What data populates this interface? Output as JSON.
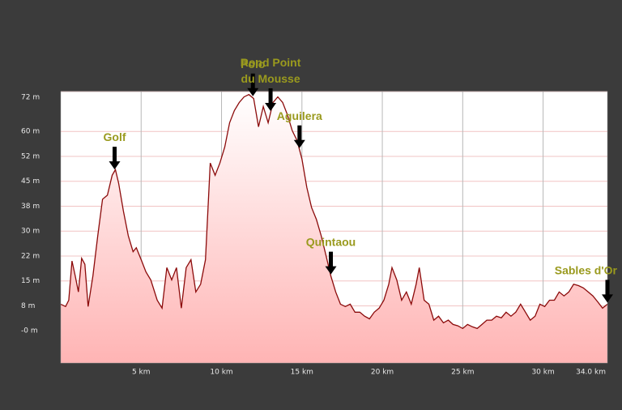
{
  "chart_data": {
    "type": "area",
    "x": [
      0,
      0.3,
      0.5,
      0.7,
      0.9,
      1.1,
      1.3,
      1.5,
      1.7,
      2.0,
      2.3,
      2.6,
      2.9,
      3.2,
      3.4,
      3.6,
      3.9,
      4.2,
      4.5,
      4.7,
      5.0,
      5.3,
      5.6,
      6.0,
      6.3,
      6.6,
      6.9,
      7.2,
      7.5,
      7.8,
      8.1,
      8.4,
      8.7,
      9.0,
      9.3,
      9.6,
      9.9,
      10.2,
      10.5,
      10.8,
      11.1,
      11.4,
      11.7,
      12.0,
      12.3,
      12.6,
      12.9,
      13.2,
      13.5,
      13.8,
      14.1,
      14.4,
      14.7,
      15.0,
      15.3,
      15.6,
      15.9,
      16.2,
      16.5,
      16.8,
      17.1,
      17.4,
      17.7,
      18.0,
      18.3,
      18.6,
      18.9,
      19.2,
      19.5,
      19.8,
      20.1,
      20.4,
      20.6,
      20.9,
      21.2,
      21.5,
      21.8,
      22.1,
      22.3,
      22.6,
      22.9,
      23.2,
      23.5,
      23.8,
      24.1,
      24.4,
      24.7,
      25.0,
      25.3,
      25.6,
      25.9,
      26.2,
      26.5,
      26.8,
      27.1,
      27.4,
      27.7,
      28.0,
      28.3,
      28.6,
      28.9,
      29.2,
      29.5,
      29.8,
      30.1,
      30.4,
      30.7,
      31.0,
      31.3,
      31.6,
      31.9,
      32.2,
      32.5,
      32.8,
      33.1,
      33.4,
      33.7,
      34.0
    ],
    "values": [
      8,
      7.3,
      9.2,
      21,
      16.5,
      11.7,
      21.8,
      20,
      7.3,
      16.5,
      28.6,
      39.6,
      40.8,
      46.8,
      48.5,
      44.4,
      36,
      28.6,
      23.8,
      25,
      21.4,
      17.7,
      15.3,
      9.2,
      6.8,
      19,
      15.3,
      19,
      6.8,
      19,
      21.4,
      11.7,
      14,
      21.4,
      50.5,
      46.8,
      50.5,
      55.3,
      62.6,
      66.3,
      68.7,
      70.4,
      71.1,
      69.9,
      61.4,
      67.5,
      62.6,
      68.7,
      70.4,
      68.7,
      65,
      60.2,
      57.3,
      51.7,
      43.2,
      37.1,
      33.5,
      28.6,
      22.6,
      16.5,
      11.7,
      8,
      7.3,
      8,
      5.6,
      5.6,
      4.4,
      3.6,
      5.6,
      6.8,
      9.2,
      14,
      19,
      15.3,
      9.2,
      11.7,
      8,
      14,
      19,
      9.2,
      8,
      3.2,
      4.4,
      2.4,
      3.2,
      1.9,
      1.5,
      0.7,
      1.9,
      1.2,
      0.7,
      1.9,
      3.2,
      3.2,
      4.4,
      3.9,
      5.6,
      4.4,
      5.6,
      8,
      5.6,
      3.2,
      4.4,
      8,
      7.3,
      9.2,
      9.2,
      11.7,
      10.5,
      11.7,
      14,
      13.6,
      12.9,
      11.7,
      10.5,
      8.7,
      6.8,
      8
    ],
    "color": "#8b0a0a",
    "xlim": [
      0,
      34
    ],
    "xticks": [
      {
        "value": 5,
        "label": "5 km"
      },
      {
        "value": 10,
        "label": "10 km"
      },
      {
        "value": 15,
        "label": "15 km"
      },
      {
        "value": 20,
        "label": "20 km"
      },
      {
        "value": 25,
        "label": "25 km"
      },
      {
        "value": 30,
        "label": "30 km"
      },
      {
        "value": 34,
        "label": "34.0 km"
      }
    ],
    "ylim": [
      -9.7,
      72
    ],
    "yticks": [
      {
        "value": 0,
        "label": "-0 m"
      },
      {
        "value": 7.5,
        "label": "8 m"
      },
      {
        "value": 15,
        "label": "15 m"
      },
      {
        "value": 22.5,
        "label": "22 m"
      },
      {
        "value": 30,
        "label": "30 m"
      },
      {
        "value": 37.5,
        "label": "38 m"
      },
      {
        "value": 45,
        "label": "45 m"
      },
      {
        "value": 52.5,
        "label": "52 m"
      },
      {
        "value": 60,
        "label": "60 m"
      },
      {
        "value": 72,
        "label": "72 m"
      }
    ],
    "grid": true,
    "annotations": [
      {
        "lines": [
          "Golf"
        ],
        "x": 3.35
      },
      {
        "lines": [
          "Polo"
        ],
        "x": 11.95
      },
      {
        "lines": [
          "Rond Point",
          "du Mousse"
        ],
        "x": 13.05
      },
      {
        "lines": [
          "Aguilera"
        ],
        "x": 14.85
      },
      {
        "lines": [
          "Quintaou"
        ],
        "x": 16.8
      },
      {
        "lines": [
          "Sables d'Or"
        ],
        "x": 34.0
      }
    ]
  }
}
